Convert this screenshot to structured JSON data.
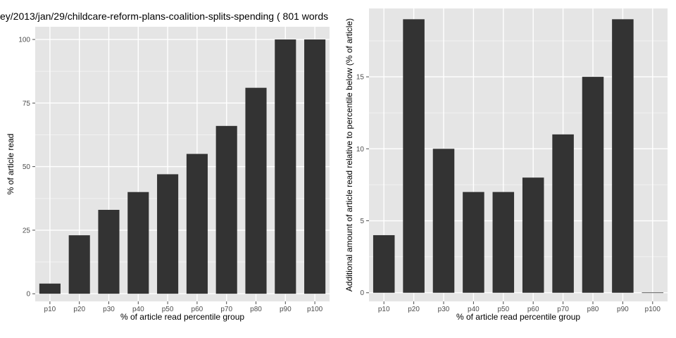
{
  "chart_data": [
    {
      "type": "bar",
      "title": "ey/2013/jan/29/childcare-reform-plans-coalition-splits-spending ( 801 words",
      "xlabel": "% of article read percentile group",
      "ylabel": "% of article read",
      "categories": [
        "p10",
        "p20",
        "p30",
        "p40",
        "p50",
        "p60",
        "p70",
        "p80",
        "p90",
        "p100"
      ],
      "values": [
        4,
        23,
        33,
        40,
        47,
        55,
        66,
        81,
        100,
        100
      ],
      "yticks": [
        0,
        25,
        50,
        75,
        100
      ],
      "ylim": [
        -3,
        105
      ],
      "grid": true,
      "colors": {
        "panel": "#e5e5e5",
        "grid": "#ffffff",
        "bar": "#333333"
      }
    },
    {
      "type": "bar",
      "title": "",
      "xlabel": "% of article read percentile group",
      "ylabel": "Additional amount of article read relative to percentile below (% of article)",
      "categories": [
        "p10",
        "p20",
        "p30",
        "p40",
        "p50",
        "p60",
        "p70",
        "p80",
        "p90",
        "p100"
      ],
      "values": [
        4,
        19,
        10,
        7,
        7,
        8,
        11,
        15,
        19,
        0
      ],
      "yticks": [
        0,
        5,
        10,
        15
      ],
      "ylim": [
        -0.6,
        19.75
      ],
      "grid": true,
      "colors": {
        "panel": "#e5e5e5",
        "grid": "#ffffff",
        "bar": "#333333"
      }
    }
  ]
}
